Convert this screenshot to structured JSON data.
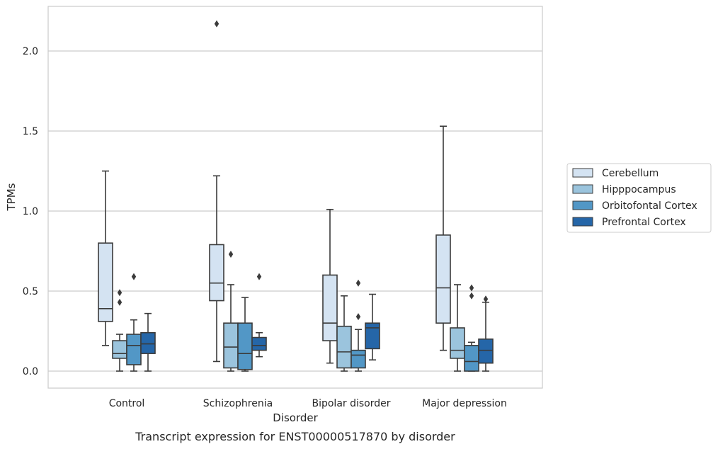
{
  "chart_data": {
    "type": "box",
    "xlabel": "Disorder",
    "ylabel": "TPMs",
    "caption": "Transcript expression for ENST00000517870 by disorder",
    "ylim": [
      -0.1,
      2.28
    ],
    "yticks": [
      0.0,
      0.5,
      1.0,
      1.5,
      2.0
    ],
    "ytick_labels": [
      "0.0",
      "0.5",
      "1.0",
      "1.5",
      "2.0"
    ],
    "grid": "horizontal",
    "legend_position": "right",
    "categories": [
      "Control",
      "Schizophrenia",
      "Bipolar disorder",
      "Major depression"
    ],
    "series": [
      {
        "name": "Cerebellum",
        "color": "#d4e3f2",
        "boxes": [
          {
            "whislo": 0.16,
            "q1": 0.31,
            "med": 0.39,
            "q3": 0.8,
            "whishi": 1.25,
            "fliers": []
          },
          {
            "whislo": 0.06,
            "q1": 0.44,
            "med": 0.55,
            "q3": 0.79,
            "whishi": 1.22,
            "fliers": [
              2.17
            ]
          },
          {
            "whislo": 0.05,
            "q1": 0.19,
            "med": 0.3,
            "q3": 0.6,
            "whishi": 1.01,
            "fliers": []
          },
          {
            "whislo": 0.13,
            "q1": 0.3,
            "med": 0.52,
            "q3": 0.85,
            "whishi": 1.53,
            "fliers": []
          }
        ]
      },
      {
        "name": "Hipppocampus",
        "color": "#9bc4dd",
        "boxes": [
          {
            "whislo": 0.0,
            "q1": 0.08,
            "med": 0.11,
            "q3": 0.19,
            "whishi": 0.23,
            "fliers": [
              0.43,
              0.49
            ]
          },
          {
            "whislo": 0.0,
            "q1": 0.02,
            "med": 0.15,
            "q3": 0.3,
            "whishi": 0.54,
            "fliers": [
              0.73
            ]
          },
          {
            "whislo": 0.0,
            "q1": 0.02,
            "med": 0.12,
            "q3": 0.28,
            "whishi": 0.47,
            "fliers": []
          },
          {
            "whislo": 0.0,
            "q1": 0.08,
            "med": 0.13,
            "q3": 0.27,
            "whishi": 0.54,
            "fliers": []
          }
        ]
      },
      {
        "name": "Orbitofontal Cortex",
        "color": "#5297c6",
        "boxes": [
          {
            "whislo": 0.0,
            "q1": 0.04,
            "med": 0.16,
            "q3": 0.23,
            "whishi": 0.32,
            "fliers": [
              0.59
            ]
          },
          {
            "whislo": 0.0,
            "q1": 0.01,
            "med": 0.11,
            "q3": 0.3,
            "whishi": 0.46,
            "fliers": []
          },
          {
            "whislo": 0.0,
            "q1": 0.02,
            "med": 0.1,
            "q3": 0.13,
            "whishi": 0.26,
            "fliers": [
              0.34,
              0.55
            ]
          },
          {
            "whislo": 0.0,
            "q1": 0.0,
            "med": 0.06,
            "q3": 0.16,
            "whishi": 0.18,
            "fliers": [
              0.47,
              0.52
            ]
          }
        ]
      },
      {
        "name": "Prefrontal Cortex",
        "color": "#2566a8",
        "boxes": [
          {
            "whislo": 0.0,
            "q1": 0.11,
            "med": 0.17,
            "q3": 0.24,
            "whishi": 0.36,
            "fliers": []
          },
          {
            "whislo": 0.09,
            "q1": 0.13,
            "med": 0.16,
            "q3": 0.21,
            "whishi": 0.24,
            "fliers": [
              0.59
            ]
          },
          {
            "whislo": 0.07,
            "q1": 0.14,
            "med": 0.27,
            "q3": 0.3,
            "whishi": 0.48,
            "fliers": []
          },
          {
            "whislo": 0.0,
            "q1": 0.05,
            "med": 0.13,
            "q3": 0.2,
            "whishi": 0.43,
            "fliers": [
              0.45
            ]
          }
        ]
      }
    ]
  }
}
